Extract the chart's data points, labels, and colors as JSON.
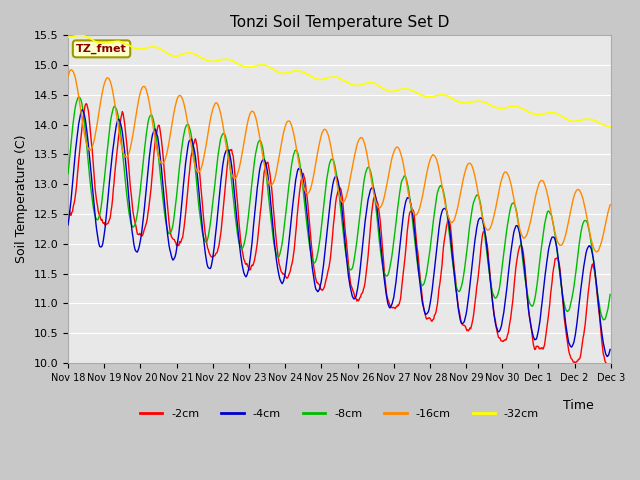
{
  "title": "Tonzi Soil Temperature Set D",
  "xlabel": "Time",
  "ylabel": "Soil Temperature (C)",
  "ylim": [
    10.0,
    15.5
  ],
  "line_colors": {
    "-2cm": "#ff0000",
    "-4cm": "#0000cc",
    "-8cm": "#00bb00",
    "-16cm": "#ff8800",
    "-32cm": "#ffff00"
  },
  "legend_label": "TZ_fmet",
  "legend_bg": "#ffffcc",
  "legend_edge": "#999900",
  "fig_bg": "#c8c8c8",
  "ax_bg": "#e8e8e8",
  "grid_color": "#ffffff"
}
